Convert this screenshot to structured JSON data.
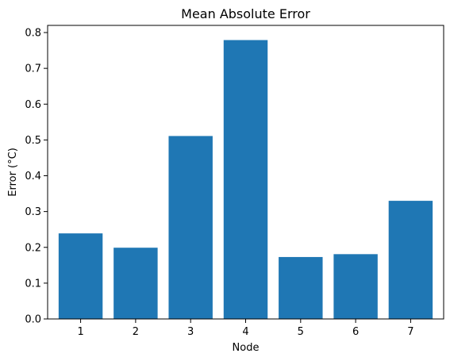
{
  "chart_data": {
    "type": "bar",
    "title": "Mean Absolute Error",
    "xlabel": "Node",
    "ylabel": "Error (°C)",
    "categories": [
      "1",
      "2",
      "3",
      "4",
      "5",
      "6",
      "7"
    ],
    "values": [
      0.239,
      0.199,
      0.511,
      0.779,
      0.173,
      0.181,
      0.33
    ],
    "ylim": [
      0,
      0.82
    ],
    "yticks": [
      0.0,
      0.1,
      0.2,
      0.3,
      0.4,
      0.5,
      0.6,
      0.7,
      0.8
    ],
    "ytick_labels": [
      "0.0",
      "0.1",
      "0.2",
      "0.3",
      "0.4",
      "0.5",
      "0.6",
      "0.7",
      "0.8"
    ],
    "bar_color": "#1f77b4",
    "grid": false,
    "legend": "none"
  }
}
